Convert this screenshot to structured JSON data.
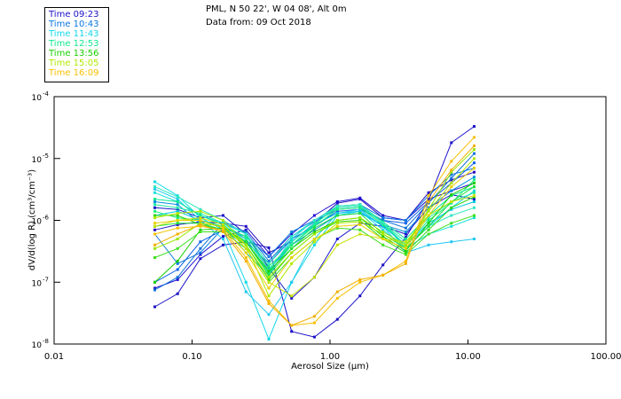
{
  "header": {
    "station": "PML, N 50 22', W 04 08', Alt 0m",
    "date_line": "Data from: 09 Oct 2018"
  },
  "legend": [
    {
      "label": "Time 09:23",
      "color": "#1a10c8"
    },
    {
      "label": "Time 10:43",
      "color": "#0a78e0"
    },
    {
      "label": "Time 11:43",
      "color": "#10d8e8"
    },
    {
      "label": "Time 12:53",
      "color": "#10e890"
    },
    {
      "label": "Time 13:56",
      "color": "#18d000"
    },
    {
      "label": "Time 15:05",
      "color": "#b0e800"
    },
    {
      "label": "Time 16:09",
      "color": "#f8c000"
    }
  ],
  "chart_data": {
    "type": "line",
    "title": "PML, N 50 22', W 04 08', Alt 0m",
    "subtitle": "Data from: 09 Oct 2018",
    "xlabel": "Aerosol Size (μm)",
    "ylabel": "dV/d(log R) (cm³/cm⁻³)",
    "xscale": "log",
    "yscale": "log",
    "xlim": [
      0.01,
      100
    ],
    "ylim": [
      1e-08,
      0.0001
    ],
    "x_ticks": [
      {
        "value": 0.01,
        "label": "0.01"
      },
      {
        "value": 0.1,
        "label": "0.10"
      },
      {
        "value": 1,
        "label": "1.00"
      },
      {
        "value": 10,
        "label": "10.00"
      },
      {
        "value": 100,
        "label": "100.00"
      }
    ],
    "y_ticks": [
      {
        "value": 0.0001,
        "base": "10",
        "exp": "-4"
      },
      {
        "value": 1e-05,
        "base": "10",
        "exp": "-5"
      },
      {
        "value": 1e-06,
        "base": "10",
        "exp": "-6"
      },
      {
        "value": 1e-07,
        "base": "10",
        "exp": "-7"
      },
      {
        "value": 1e-08,
        "base": "10",
        "exp": "-8"
      }
    ],
    "grid": false,
    "legend_position": "top-left",
    "x": [
      0.0537,
      0.0785,
      0.115,
      0.168,
      0.246,
      0.36,
      0.527,
      0.771,
      1.13,
      1.65,
      2.42,
      3.54,
      5.18,
      7.58,
      11.1
    ],
    "series": [
      {
        "name": "Time 09:23 (a)",
        "color": "#1a10c8",
        "values": [
          4e-08,
          6.5e-08,
          2.4e-07,
          4e-07,
          4.5e-07,
          3.6e-07,
          1.6e-08,
          1.3e-08,
          2.5e-08,
          6e-08,
          1.9e-07,
          5.3e-07,
          2.1e-06,
          1.8e-05,
          3.3e-05
        ]
      },
      {
        "name": "Time 09:23 (b)",
        "color": "#2810c0",
        "values": [
          7e-07,
          8.5e-07,
          9.5e-07,
          9e-07,
          8e-07,
          3e-07,
          4.5e-07,
          9e-07,
          1.9e-06,
          2.2e-06,
          1.1e-06,
          1e-06,
          2.8e-06,
          4.5e-06,
          6e-06
        ]
      },
      {
        "name": "Time 09:23 (c)",
        "color": "#2010d0",
        "values": [
          8e-08,
          1.1e-07,
          2.8e-07,
          5.5e-07,
          7e-07,
          2.6e-07,
          6e-07,
          1.2e-06,
          2e-06,
          2.3e-06,
          1.2e-06,
          1e-06,
          2.2e-06,
          3e-06,
          4e-06
        ]
      },
      {
        "name": "Time 09:23 (d)",
        "color": "#1818c8",
        "values": [
          1.6e-06,
          1.5e-06,
          1.1e-06,
          1.2e-06,
          6e-07,
          1.7e-07,
          5.5e-08,
          1.2e-07,
          5e-07,
          9e-07,
          8e-07,
          6e-07,
          1.6e-06,
          2.6e-06,
          2.2e-06
        ]
      },
      {
        "name": "Time 10:43 (a)",
        "color": "#0a78e0",
        "values": [
          6e-07,
          2e-07,
          3e-07,
          7.5e-07,
          5.5e-07,
          2.6e-07,
          6.5e-07,
          1e-06,
          1.7e-06,
          1.8e-06,
          1.1e-06,
          1e-06,
          2.5e-06,
          5.5e-06,
          7e-06
        ]
      },
      {
        "name": "Time 10:43 (b)",
        "color": "#0a60e8",
        "values": [
          1e-07,
          1.6e-07,
          4.5e-07,
          7e-07,
          4.5e-07,
          2e-07,
          5e-07,
          8e-07,
          1.4e-06,
          1.5e-06,
          1e-06,
          9e-07,
          2e-06,
          4e-06,
          8.5e-06
        ]
      },
      {
        "name": "Time 10:43 (c)",
        "color": "#0890e0",
        "values": [
          2e-06,
          1.8e-06,
          9e-07,
          8e-07,
          5e-07,
          1.6e-07,
          4e-07,
          7e-07,
          1.2e-06,
          1.3e-06,
          8.5e-07,
          6.5e-07,
          1.6e-06,
          3e-06,
          5e-06
        ]
      },
      {
        "name": "Time 10:43 (d)",
        "color": "#1070d8",
        "values": [
          7.5e-08,
          1.2e-07,
          3.5e-07,
          9e-07,
          6.5e-07,
          2.2e-07,
          5.5e-07,
          9.5e-07,
          1.5e-06,
          1.6e-06,
          1e-06,
          7.5e-07,
          1.9e-06,
          4.8e-06,
          1.2e-05
        ]
      },
      {
        "name": "Time 11:43 (a)",
        "color": "#10d8e8",
        "values": [
          4.2e-06,
          2.5e-06,
          1.1e-06,
          7e-07,
          1e-07,
          1.2e-08,
          1e-07,
          4e-07,
          1.2e-06,
          1.4e-06,
          7e-07,
          3.5e-07,
          8e-07,
          1.6e-06,
          3e-06
        ]
      },
      {
        "name": "Time 11:43 (b)",
        "color": "#20c8f0",
        "values": [
          3.2e-06,
          2.2e-06,
          1e-06,
          5e-07,
          7e-08,
          3e-08,
          1e-07,
          5e-07,
          1.3e-06,
          1.5e-06,
          8e-07,
          3e-07,
          4e-07,
          4.5e-07,
          5e-07
        ]
      },
      {
        "name": "Time 11:43 (c)",
        "color": "#18e0d8",
        "values": [
          2.8e-06,
          2e-06,
          1.2e-06,
          9e-07,
          6e-07,
          1.5e-07,
          5e-07,
          1e-06,
          1.6e-06,
          1.7e-06,
          9e-07,
          3.5e-07,
          6e-07,
          8e-07,
          1.1e-06
        ]
      },
      {
        "name": "Time 11:43 (d)",
        "color": "#00c8e0",
        "values": [
          1.2e-06,
          1.4e-06,
          1e-06,
          8e-07,
          3e-07,
          1.3e-07,
          4.5e-07,
          8.5e-07,
          1.3e-06,
          1.4e-06,
          8e-07,
          4e-07,
          9e-07,
          1.5e-06,
          2e-06
        ]
      },
      {
        "name": "Time 12:53 (a)",
        "color": "#10e890",
        "values": [
          2.2e-06,
          2e-06,
          1.2e-06,
          8.5e-07,
          4.5e-07,
          1.4e-07,
          4e-07,
          8.5e-07,
          1.7e-06,
          1.8e-06,
          9.5e-07,
          5e-07,
          1.2e-06,
          2.5e-06,
          3.5e-06
        ]
      },
      {
        "name": "Time 12:53 (b)",
        "color": "#20e8a8",
        "values": [
          1.8e-06,
          1.6e-06,
          1.3e-06,
          9e-07,
          5e-07,
          1.6e-07,
          4.5e-07,
          9e-07,
          1.6e-06,
          1.7e-06,
          9e-07,
          4.5e-07,
          1.1e-06,
          2e-06,
          2.8e-06
        ]
      },
      {
        "name": "Time 12:53 (c)",
        "color": "#18f078",
        "values": [
          1.4e-06,
          1.1e-06,
          1e-06,
          8e-07,
          5.5e-07,
          1.8e-07,
          4e-07,
          8e-07,
          1.5e-06,
          1.6e-06,
          8.5e-07,
          4e-07,
          1e-06,
          1.9e-06,
          4.5e-06
        ]
      },
      {
        "name": "Time 12:53 (d)",
        "color": "#30e8c0",
        "values": [
          3.5e-06,
          2.4e-06,
          1.5e-06,
          1e-06,
          6e-07,
          2e-07,
          5.5e-07,
          1e-06,
          1.7e-06,
          1.8e-06,
          9e-07,
          4e-07,
          8e-07,
          1.2e-06,
          1.6e-06
        ]
      },
      {
        "name": "Time 13:56 (a)",
        "color": "#18d000",
        "values": [
          1e-07,
          2.2e-07,
          7e-07,
          7.5e-07,
          4.5e-07,
          1.5e-07,
          3.5e-07,
          6.5e-07,
          1e-06,
          1.1e-06,
          5.5e-07,
          3.2e-07,
          9e-07,
          2.6e-06,
          4e-06
        ]
      },
      {
        "name": "Time 13:56 (b)",
        "color": "#30d810",
        "values": [
          1.2e-06,
          1.2e-06,
          8.5e-07,
          7e-07,
          4e-07,
          1.1e-07,
          3e-07,
          6e-07,
          9.5e-07,
          1e-06,
          5e-07,
          3e-07,
          7e-07,
          1.6e-06,
          2.4e-06
        ]
      },
      {
        "name": "Time 13:56 (c)",
        "color": "#20e040",
        "values": [
          8e-07,
          9e-07,
          9e-07,
          7e-07,
          4.5e-07,
          1.3e-07,
          3.5e-07,
          7.5e-07,
          1.2e-06,
          1.3e-06,
          6e-07,
          3.5e-07,
          8e-07,
          2e-06,
          3.5e-06
        ]
      },
      {
        "name": "Time 13:56 (d)",
        "color": "#40e020",
        "values": [
          2.5e-07,
          3.5e-07,
          6.5e-07,
          6.5e-07,
          3.5e-07,
          1e-07,
          2.5e-07,
          5e-07,
          7.5e-07,
          7e-07,
          4e-07,
          2.8e-07,
          6e-07,
          9e-07,
          1.2e-06
        ]
      },
      {
        "name": "Time 15:05 (a)",
        "color": "#b0e800",
        "values": [
          1.1e-06,
          1.3e-06,
          1.4e-06,
          1e-06,
          4e-07,
          6e-08,
          2e-07,
          4.5e-07,
          9e-07,
          9.5e-07,
          6e-07,
          3.8e-07,
          1.4e-06,
          4e-06,
          1e-05
        ]
      },
      {
        "name": "Time 15:05 (b)",
        "color": "#c8e000",
        "values": [
          8e-07,
          1e-06,
          1.1e-06,
          8.5e-07,
          3.5e-07,
          1e-07,
          6e-08,
          1.2e-07,
          4e-07,
          6e-07,
          5e-07,
          4.5e-07,
          1.2e-06,
          2e-06,
          2.5e-06
        ]
      },
      {
        "name": "Time 15:05 (c)",
        "color": "#98e800",
        "values": [
          3.5e-07,
          5e-07,
          9e-07,
          8e-07,
          4e-07,
          1.2e-07,
          3e-07,
          6e-07,
          1e-06,
          1.1e-06,
          6.5e-07,
          4e-07,
          1.5e-06,
          6e-06,
          1.4e-05
        ]
      },
      {
        "name": "Time 16:09 (a)",
        "color": "#f8c000",
        "values": [
          6e-07,
          7.5e-07,
          8e-07,
          7e-07,
          2.5e-07,
          5e-08,
          2e-08,
          2.2e-08,
          5.5e-08,
          1e-07,
          1.3e-07,
          2.2e-07,
          2.5e-06,
          9e-06,
          2.2e-05
        ]
      },
      {
        "name": "Time 16:09 (b)",
        "color": "#f0b000",
        "values": [
          4e-07,
          6e-07,
          8.5e-07,
          6.5e-07,
          2.2e-07,
          4.5e-08,
          2e-08,
          2.8e-08,
          7e-08,
          1.1e-07,
          1.3e-07,
          2e-07,
          2e-06,
          6.5e-06,
          1.6e-05
        ]
      },
      {
        "name": "Time 16:09 (c)",
        "color": "#e8d000",
        "values": [
          9e-07,
          1e-06,
          1e-06,
          7.5e-07,
          3e-07,
          8e-08,
          2.5e-07,
          5e-07,
          8e-07,
          8.5e-07,
          5e-07,
          3.5e-07,
          1.2e-06,
          3.5e-06,
          7e-06
        ]
      }
    ]
  }
}
